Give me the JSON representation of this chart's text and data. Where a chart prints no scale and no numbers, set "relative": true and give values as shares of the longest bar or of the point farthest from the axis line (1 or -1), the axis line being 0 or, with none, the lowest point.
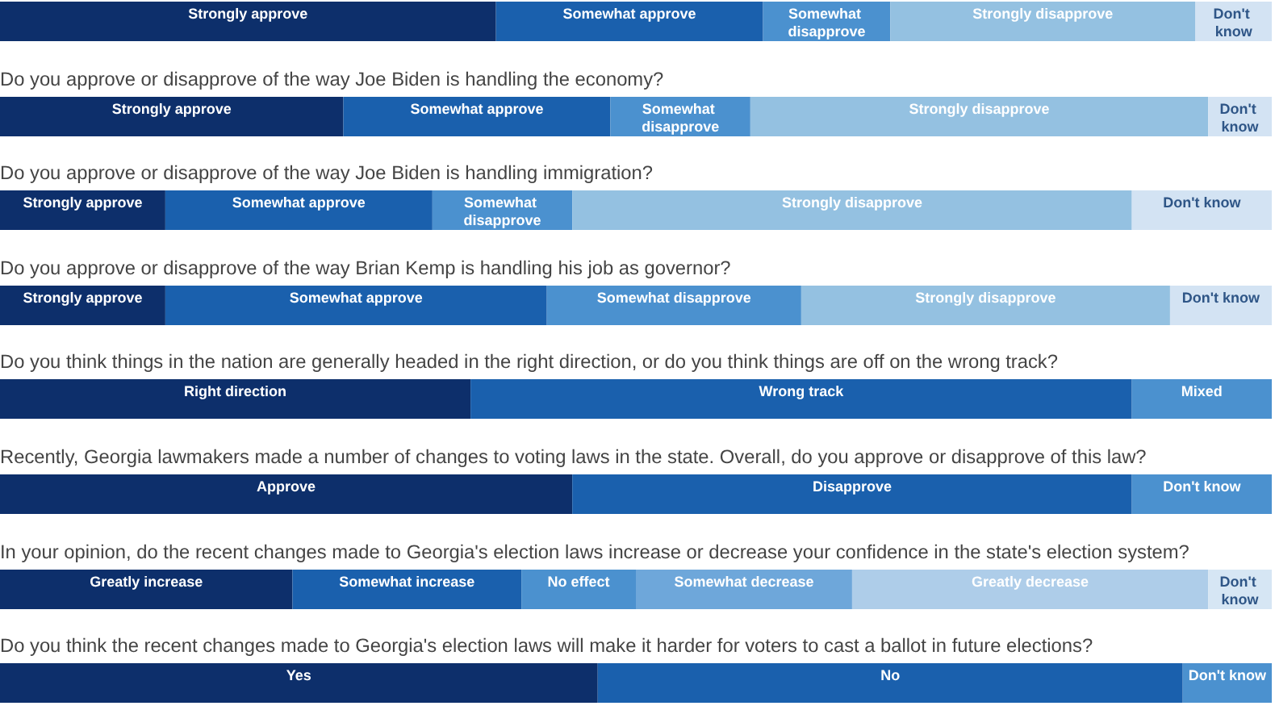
{
  "chart_data": [
    {
      "type": "bar",
      "orientation": "horizontal",
      "stacked": true,
      "relative": true,
      "categories": [
        null
      ],
      "series": [
        {
          "name": "Strongly approve",
          "color": "#0d2f6b",
          "values": [
            0.39
          ]
        },
        {
          "name": "Somewhat approve",
          "color": "#1a60ad",
          "values": [
            0.21
          ]
        },
        {
          "name": "Somewhat disapprove",
          "color": "#4b91cf",
          "values": [
            0.1
          ]
        },
        {
          "name": "Strongly disapprove",
          "color": "#94c1e1",
          "values": [
            0.24
          ]
        },
        {
          "name": "Don't know",
          "color": "#d3e3f3",
          "values": [
            0.06
          ]
        }
      ]
    },
    {
      "type": "bar",
      "orientation": "horizontal",
      "stacked": true,
      "relative": true,
      "categories": [
        null
      ],
      "title": "Do you approve or disapprove of the way Joe Biden is handling the economy?",
      "series": [
        {
          "name": "Strongly approve",
          "color": "#0d2f6b",
          "values": [
            0.27
          ]
        },
        {
          "name": "Somewhat approve",
          "color": "#1a60ad",
          "values": [
            0.21
          ]
        },
        {
          "name": "Somewhat disapprove",
          "color": "#4b91cf",
          "values": [
            0.11
          ]
        },
        {
          "name": "Strongly disapprove",
          "color": "#94c1e1",
          "values": [
            0.36
          ]
        },
        {
          "name": "Don't know",
          "color": "#d3e3f3",
          "values": [
            0.05
          ]
        }
      ]
    },
    {
      "type": "bar",
      "orientation": "horizontal",
      "stacked": true,
      "relative": true,
      "categories": [
        null
      ],
      "title": "Do you approve or disapprove of the way Joe Biden is handling immigration?",
      "series": [
        {
          "name": "Strongly approve",
          "color": "#0d2f6b",
          "values": [
            0.13
          ]
        },
        {
          "name": "Somewhat approve",
          "color": "#1a60ad",
          "values": [
            0.21
          ]
        },
        {
          "name": "Somewhat disapprove",
          "color": "#4b91cf",
          "values": [
            0.11
          ]
        },
        {
          "name": "Strongly disapprove",
          "color": "#94c1e1",
          "values": [
            0.44
          ]
        },
        {
          "name": "Don't know",
          "color": "#d3e3f3",
          "values": [
            0.11
          ]
        }
      ]
    },
    {
      "type": "bar",
      "orientation": "horizontal",
      "stacked": true,
      "relative": true,
      "categories": [
        null
      ],
      "title": "Do you approve or disapprove of the way Brian Kemp is handling his job as governor?",
      "series": [
        {
          "name": "Strongly approve",
          "color": "#0d2f6b",
          "values": [
            0.13
          ]
        },
        {
          "name": "Somewhat approve",
          "color": "#1a60ad",
          "values": [
            0.3
          ]
        },
        {
          "name": "Somewhat disapprove",
          "color": "#4b91cf",
          "values": [
            0.2
          ]
        },
        {
          "name": "Strongly disapprove",
          "color": "#94c1e1",
          "values": [
            0.29
          ]
        },
        {
          "name": "Don't know",
          "color": "#d3e3f3",
          "values": [
            0.08
          ]
        }
      ]
    },
    {
      "type": "bar",
      "orientation": "horizontal",
      "stacked": true,
      "relative": true,
      "categories": [
        null
      ],
      "title": "Do you think things in the nation are generally headed in the right direction, or do you think things are off on the wrong track?",
      "series": [
        {
          "name": "Right direction",
          "color": "#0d2f6b",
          "values": [
            0.37
          ]
        },
        {
          "name": "Wrong track",
          "color": "#1a60ad",
          "values": [
            0.52
          ]
        },
        {
          "name": "Mixed",
          "color": "#4b91cf",
          "values": [
            0.11
          ]
        }
      ]
    },
    {
      "type": "bar",
      "orientation": "horizontal",
      "stacked": true,
      "relative": true,
      "categories": [
        null
      ],
      "title": "Recently, Georgia lawmakers made a number of changes to voting laws in the state. Overall, do you approve or disapprove of this law?",
      "series": [
        {
          "name": "Approve",
          "color": "#0d2f6b",
          "values": [
            0.45
          ]
        },
        {
          "name": "Disapprove",
          "color": "#1a60ad",
          "values": [
            0.44
          ]
        },
        {
          "name": "Don't know",
          "color": "#4b91cf",
          "values": [
            0.11
          ]
        }
      ]
    },
    {
      "type": "bar",
      "orientation": "horizontal",
      "stacked": true,
      "relative": true,
      "categories": [
        null
      ],
      "title": "In your opinion, do the recent changes made to Georgia's election laws increase or decrease your confidence in the state's election system?",
      "series": [
        {
          "name": "Greatly increase",
          "color": "#0d2f6b",
          "values": [
            0.23
          ]
        },
        {
          "name": "Somewhat increase",
          "color": "#1a60ad",
          "values": [
            0.18
          ]
        },
        {
          "name": "No effect",
          "color": "#4b91cf",
          "values": [
            0.09
          ]
        },
        {
          "name": "Somewhat decrease",
          "color": "#6ea7da",
          "values": [
            0.17
          ]
        },
        {
          "name": "Greatly decrease",
          "color": "#aecde9",
          "values": [
            0.28
          ]
        },
        {
          "name": "Don't know",
          "color": "#d6e6f4",
          "values": [
            0.05
          ]
        }
      ]
    },
    {
      "type": "bar",
      "orientation": "horizontal",
      "stacked": true,
      "relative": true,
      "categories": [
        null
      ],
      "title": "Do you think the recent changes made to Georgia's election laws will make it harder for voters to cast a ballot in future elections?",
      "series": [
        {
          "name": "Yes",
          "color": "#0d2f6b",
          "values": [
            0.47
          ]
        },
        {
          "name": "No",
          "color": "#1a60ad",
          "values": [
            0.46
          ]
        },
        {
          "name": "Don't know",
          "color": "#4b91cf",
          "values": [
            0.07
          ]
        }
      ]
    }
  ]
}
